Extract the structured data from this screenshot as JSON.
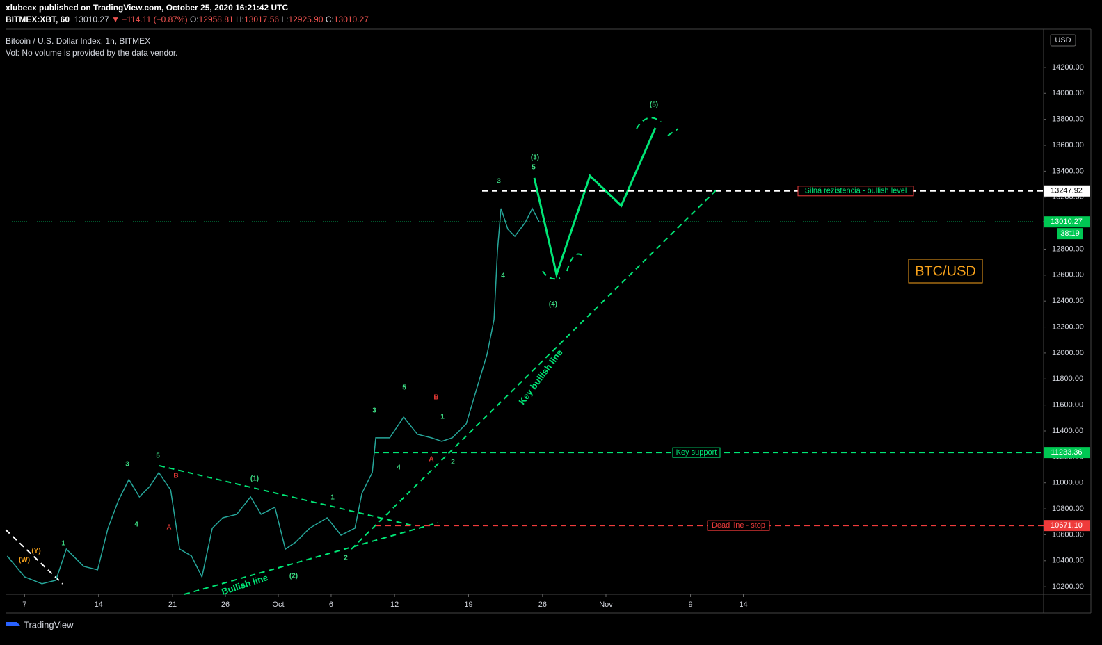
{
  "header": {
    "published": "xlubecx published on TradingView.com, October 25, 2020 16:21:42 UTC",
    "symbol": "BITMEX:XBT, 60",
    "last": "13010.27",
    "change": "▼ −114.11 (−0.87%)",
    "ohlc": [
      {
        "label": "O:",
        "value": "12958.81"
      },
      {
        "label": "H:",
        "value": "13017.56"
      },
      {
        "label": "L:",
        "value": "12925.90"
      },
      {
        "label": "C:",
        "value": "13010.27"
      }
    ],
    "pane_title": "Bitcoin / U.S. Dollar Index, 1h, BITMEX",
    "volume_note": "Vol: No volume is provided by the data vendor.",
    "currency": "USD",
    "footer": "TradingView"
  },
  "chart_data": {
    "type": "line",
    "title": "BTC/USD",
    "x": [
      5.36,
      7.0,
      8.64,
      9.96,
      10.95,
      12.59,
      13.91,
      14.89,
      15.88,
      16.87,
      17.86,
      18.84,
      19.7,
      20.82,
      21.67,
      22.79,
      23.78,
      24.76,
      25.75,
      27.07,
      28.38,
      29.37,
      30.68,
      31.67,
      32.66,
      33.97,
      35.62,
      36.93,
      38.25,
      38.91,
      39.89,
      40.22,
      41.54,
      42.86,
      44.17,
      45.49,
      46.47,
      47.46,
      48.78,
      49.76,
      50.75,
      51.41,
      51.74,
      52.07,
      52.72,
      53.38,
      54.37,
      55.03,
      55.68
    ],
    "series": [
      {
        "name": "Bitcoin / U.S. Dollar Index",
        "color": "#26a69a",
        "values": [
          10437,
          10276,
          10223,
          10250,
          10490,
          10357,
          10330,
          10651,
          10865,
          11026,
          10892,
          10972,
          11079,
          10945,
          10490,
          10437,
          10276,
          10651,
          10731,
          10758,
          10892,
          10758,
          10812,
          10490,
          10544,
          10651,
          10731,
          10597,
          10651,
          10919,
          11079,
          11347,
          11347,
          11507,
          11374,
          11347,
          11320,
          11347,
          11454,
          11722,
          11989,
          12257,
          12792,
          13113,
          12953,
          12899,
          13006,
          13113,
          13010.27
        ]
      }
    ],
    "xlim": [
      5.2,
      103.4
    ],
    "xticks": [
      {
        "value": 7,
        "label": "7"
      },
      {
        "value": 14,
        "label": "14"
      },
      {
        "value": 21,
        "label": "21"
      },
      {
        "value": 26,
        "label": "26"
      },
      {
        "value": 31,
        "label": "Oct"
      },
      {
        "value": 36,
        "label": "6"
      },
      {
        "value": 42,
        "label": "12"
      },
      {
        "value": 49,
        "label": "19"
      },
      {
        "value": 56,
        "label": "26"
      },
      {
        "value": 62,
        "label": "Nov"
      },
      {
        "value": 70,
        "label": "9"
      },
      {
        "value": 75,
        "label": "14"
      }
    ],
    "ylim": [
      10142,
      14494
    ],
    "yticks": [
      {
        "value": 10200,
        "label": "10200.00"
      },
      {
        "value": 10400,
        "label": "10400.00"
      },
      {
        "value": 10600,
        "label": "10600.00"
      },
      {
        "value": 10800,
        "label": "10800.00"
      },
      {
        "value": 11000,
        "label": "11000.00"
      },
      {
        "value": 11200,
        "label": "11200.00"
      },
      {
        "value": 11400,
        "label": "11400.00"
      },
      {
        "value": 11600,
        "label": "11600.00"
      },
      {
        "value": 11800,
        "label": "11800.00"
      },
      {
        "value": 12000,
        "label": "12000.00"
      },
      {
        "value": 12200,
        "label": "12200.00"
      },
      {
        "value": 12400,
        "label": "12400.00"
      },
      {
        "value": 12600,
        "label": "12600.00"
      },
      {
        "value": 12800,
        "label": "12800.00"
      },
      {
        "value": 13000,
        "label": "13000.00"
      },
      {
        "value": 13200,
        "label": "13200.00"
      },
      {
        "value": 13400,
        "label": "13400.00"
      },
      {
        "value": 13600,
        "label": "13600.00"
      },
      {
        "value": 13800,
        "label": "13800.00"
      },
      {
        "value": 14000,
        "label": "14000.00"
      },
      {
        "value": 14200,
        "label": "14200.00"
      }
    ],
    "grid": false,
    "price_lines": [
      {
        "value": 13247.92,
        "label": "13247.92",
        "note": "Silná rezistencia - bullish level",
        "color": "#ffffff"
      },
      {
        "value": 13010.27,
        "label": "13010.27",
        "countdown": "38:19",
        "color": "#00e676"
      },
      {
        "value": 11233.36,
        "label": "11233.36",
        "note": "Key support",
        "color": "#00e676"
      },
      {
        "value": 10671.1,
        "label": "10671.10",
        "note": "Dead line - stop",
        "color": "#ef3b3b"
      }
    ],
    "annotations": [
      "Key bullish line",
      "Bullish line"
    ],
    "wave_labels": [
      "3",
      "5",
      "4",
      "B",
      "A",
      "(1)",
      "1",
      "(2)",
      "2",
      "3",
      "5",
      "4",
      "B",
      "1",
      "A",
      "2",
      "3",
      "4",
      "(3)",
      "5",
      "(4)",
      "(5)",
      "1",
      "(W)",
      "(Y)"
    ]
  }
}
